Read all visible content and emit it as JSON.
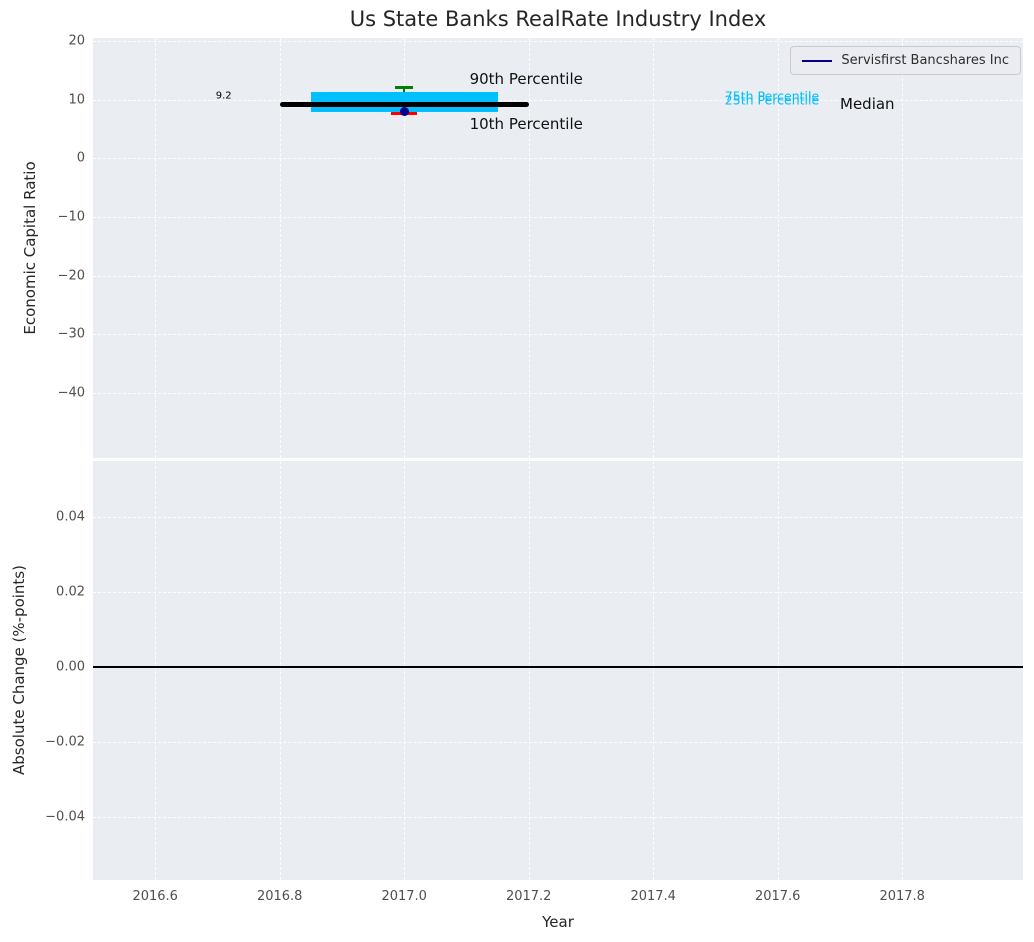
{
  "chart_data": [
    {
      "type": "box",
      "title": "Us State Banks RealRate Industry Index",
      "ylabel": "Economic Capital Ratio",
      "xlim": [
        2016.5,
        2017.994
      ],
      "ylim": [
        -51.1,
        20.5
      ],
      "xticks": [
        2016.6,
        2016.8,
        2017.0,
        2017.2,
        2017.4,
        2017.6,
        2017.8
      ],
      "xticklabels": [
        "2016.6",
        "2016.8",
        "2017.0",
        "2017.2",
        "2017.4",
        "2017.6",
        "2017.8"
      ],
      "yticks": [
        20,
        10,
        0,
        -10,
        -20,
        -30,
        -40
      ],
      "yticklabels": [
        "20",
        "10",
        "0",
        "−10",
        "−20",
        "−30",
        "−40"
      ],
      "grid": "white-dashed",
      "legend": {
        "position": "upper right",
        "entries": [
          {
            "label": "Servisfirst Bancshares Inc",
            "color": "#00008B"
          }
        ]
      },
      "series": [
        {
          "name": "Servisfirst Bancshares Inc",
          "type": "scatter",
          "color": "#00008B",
          "x": [
            2017.0
          ],
          "y": [
            7.9
          ]
        }
      ],
      "boxplot": {
        "x": 2017.0,
        "median": 9.2,
        "median_label": "9.2",
        "p25": 7.9,
        "p75": 11.3,
        "p10": 7.6,
        "p90": 12.1,
        "box_x0": 2016.85,
        "box_x1": 2017.15,
        "median_x0": 2016.8,
        "median_x1": 2017.2,
        "box_color": "#00BFFF",
        "median_color": "#000000",
        "p90_color": "#008000",
        "p10_color": "#FF0000"
      },
      "annotations": [
        {
          "text": "9.2",
          "x": 2016.71,
          "y": 10.7,
          "color": "#000000",
          "size": 10,
          "anchor": "center"
        },
        {
          "text": "90th Percentile",
          "x": 2017.105,
          "y": 13.6,
          "color": "#111111",
          "size": 15,
          "anchor": "left"
        },
        {
          "text": "10th Percentile",
          "x": 2017.105,
          "y": 5.9,
          "color": "#111111",
          "size": 15,
          "anchor": "left"
        },
        {
          "text": "75th Percentile",
          "x": 2017.515,
          "y": 10.55,
          "color": "#00BFFF",
          "size": 12.5,
          "anchor": "left"
        },
        {
          "text": "25th Percentile",
          "x": 2017.515,
          "y": 9.95,
          "color": "#00BFFF",
          "size": 12.5,
          "anchor": "left"
        },
        {
          "text": "Median",
          "x": 2017.7,
          "y": 9.3,
          "color": "#111111",
          "size": 15,
          "anchor": "left"
        }
      ]
    },
    {
      "type": "line",
      "ylabel": "Absolute Change (%-points)",
      "xlabel": "Year",
      "xlim": [
        2016.5,
        2017.994
      ],
      "ylim": [
        -0.0568,
        0.0549
      ],
      "xticks": [
        2016.6,
        2016.8,
        2017.0,
        2017.2,
        2017.4,
        2017.6,
        2017.8
      ],
      "xticklabels": [
        "2016.6",
        "2016.8",
        "2017.0",
        "2017.2",
        "2017.4",
        "2017.6",
        "2017.8"
      ],
      "yticks": [
        0.04,
        0.02,
        0,
        -0.02,
        -0.04
      ],
      "yticklabels": [
        "0.04",
        "0.02",
        "0.00",
        "−0.02",
        "−0.04"
      ],
      "grid": "white-dashed",
      "zero_line": {
        "y": 0,
        "color": "#000000"
      },
      "series": []
    }
  ]
}
